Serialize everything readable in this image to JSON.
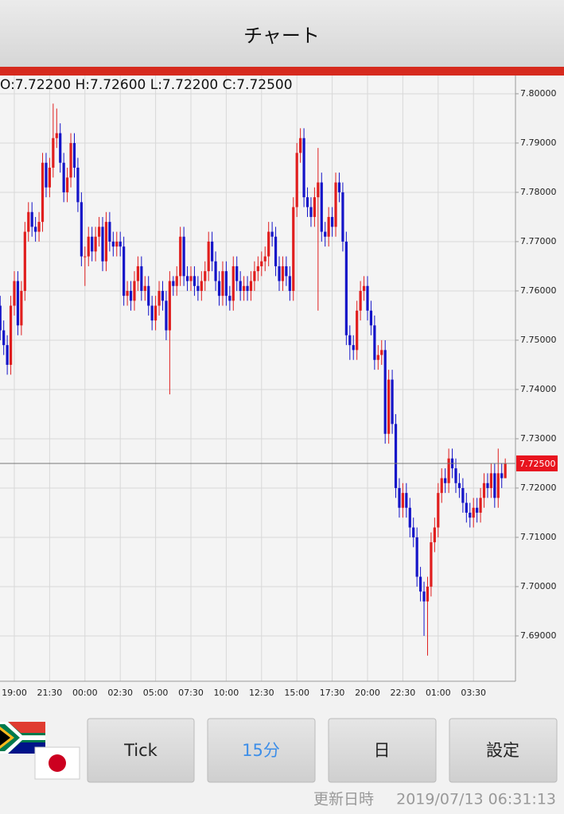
{
  "header": {
    "title": "チャート"
  },
  "buttons": [
    "Tick",
    "15分",
    "日",
    "設定"
  ],
  "footer": {
    "label": "更新日時",
    "timestamp": "2019/07/13 06:31:13"
  },
  "chart_data": {
    "type": "candlestick",
    "info": "O:7.72200 H:7.72600 L:7.72200 C:7.72500",
    "up_color": "#e01e1e",
    "down_color": "#1414c8",
    "categories": [
      null,
      null,
      null,
      null,
      "19:00",
      null,
      null,
      null,
      null,
      null,
      null,
      null,
      null,
      null,
      "21:30",
      null,
      null,
      null,
      null,
      null,
      null,
      null,
      null,
      null,
      "00:00",
      null,
      null,
      null,
      null,
      null,
      null,
      null,
      null,
      null,
      "02:30",
      null,
      null,
      null,
      null,
      null,
      null,
      null,
      null,
      null,
      "05:00",
      null,
      null,
      null,
      null,
      null,
      null,
      null,
      null,
      null,
      "07:30",
      null,
      null,
      null,
      null,
      null,
      null,
      null,
      null,
      null,
      "10:00",
      null,
      null,
      null,
      null,
      null,
      null,
      null,
      null,
      null,
      "12:30",
      null,
      null,
      null,
      null,
      null,
      null,
      null,
      null,
      null,
      "15:00",
      null,
      null,
      null,
      null,
      null,
      null,
      null,
      null,
      null,
      "17:30",
      null,
      null,
      null,
      null,
      null,
      null,
      null,
      null,
      null,
      "20:00",
      null,
      null,
      null,
      null,
      null,
      null,
      null,
      null,
      null,
      "22:30",
      null,
      null,
      null,
      null,
      null,
      null,
      null,
      null,
      null,
      "01:00",
      null,
      null,
      null,
      null,
      null,
      null,
      null,
      null,
      null,
      "03:30",
      null,
      null,
      null,
      null,
      null,
      null,
      null,
      null,
      null
    ],
    "open": [
      7.757,
      7.752,
      7.749,
      7.745,
      7.757,
      7.762,
      7.753,
      7.76,
      7.772,
      7.776,
      7.773,
      7.772,
      7.774,
      7.786,
      7.781,
      7.785,
      7.791,
      7.792,
      7.786,
      7.78,
      7.783,
      7.79,
      7.785,
      7.778,
      7.767,
      7.767,
      7.771,
      7.768,
      7.771,
      7.773,
      7.766,
      7.774,
      7.77,
      7.769,
      7.77,
      7.769,
      7.759,
      7.76,
      7.758,
      7.762,
      7.765,
      7.76,
      7.761,
      7.757,
      7.754,
      7.757,
      7.76,
      7.758,
      7.752,
      7.762,
      7.761,
      7.763,
      7.771,
      7.763,
      7.762,
      7.763,
      7.761,
      7.76,
      7.762,
      7.764,
      7.77,
      7.766,
      7.762,
      7.759,
      7.764,
      7.759,
      7.758,
      7.765,
      7.762,
      7.76,
      7.761,
      7.76,
      7.762,
      7.764,
      7.765,
      7.766,
      7.767,
      7.772,
      7.771,
      7.765,
      7.762,
      7.765,
      7.763,
      7.76,
      7.777,
      7.788,
      7.791,
      7.779,
      7.777,
      7.775,
      7.779,
      7.782,
      7.772,
      7.771,
      7.775,
      7.773,
      7.782,
      7.78,
      7.77,
      7.751,
      7.749,
      7.748,
      7.756,
      7.76,
      7.761,
      7.756,
      7.753,
      7.746,
      7.747,
      7.748,
      7.731,
      7.742,
      7.733,
      7.72,
      7.716,
      7.719,
      7.716,
      7.712,
      7.71,
      7.702,
      7.699,
      7.697,
      7.7,
      7.709,
      7.712,
      7.719,
      7.722,
      7.721,
      7.726,
      7.724,
      7.721,
      7.72,
      7.717,
      7.715,
      7.714,
      7.716,
      7.715,
      7.718,
      7.721,
      7.72,
      7.723,
      7.718,
      7.723,
      7.722
    ],
    "high": [
      7.759,
      7.754,
      7.751,
      7.759,
      7.764,
      7.764,
      7.762,
      7.774,
      7.778,
      7.778,
      7.775,
      7.776,
      7.788,
      7.788,
      7.787,
      7.798,
      7.797,
      7.794,
      7.788,
      7.785,
      7.792,
      7.792,
      7.787,
      7.78,
      7.769,
      7.773,
      7.773,
      7.773,
      7.775,
      7.775,
      7.776,
      7.776,
      7.772,
      7.772,
      7.772,
      7.771,
      7.762,
      7.762,
      7.764,
      7.767,
      7.767,
      7.763,
      7.763,
      7.759,
      7.759,
      7.762,
      7.762,
      7.76,
      7.764,
      7.763,
      7.765,
      7.773,
      7.773,
      7.765,
      7.765,
      7.765,
      7.763,
      7.764,
      7.766,
      7.772,
      7.772,
      7.768,
      7.764,
      7.766,
      7.766,
      7.761,
      7.767,
      7.767,
      7.764,
      7.763,
      7.763,
      7.764,
      7.766,
      7.767,
      7.768,
      7.769,
      7.774,
      7.774,
      7.773,
      7.767,
      7.767,
      7.767,
      7.765,
      7.779,
      7.79,
      7.793,
      7.793,
      7.781,
      7.779,
      7.781,
      7.789,
      7.784,
      7.774,
      7.777,
      7.777,
      7.784,
      7.784,
      7.782,
      7.772,
      7.753,
      7.751,
      7.758,
      7.762,
      7.763,
      7.763,
      7.758,
      7.755,
      7.749,
      7.75,
      7.75,
      7.744,
      7.744,
      7.735,
      7.722,
      7.721,
      7.721,
      7.718,
      7.714,
      7.712,
      7.704,
      7.701,
      7.702,
      7.711,
      7.714,
      7.721,
      7.724,
      7.724,
      7.728,
      7.728,
      7.726,
      7.723,
      7.722,
      7.719,
      7.717,
      7.718,
      7.718,
      7.72,
      7.723,
      7.723,
      7.725,
      7.725,
      7.728,
      7.725,
      7.726
    ],
    "low": [
      7.75,
      7.747,
      7.743,
      7.743,
      7.755,
      7.751,
      7.751,
      7.758,
      7.77,
      7.771,
      7.77,
      7.77,
      7.772,
      7.779,
      7.779,
      7.783,
      7.789,
      7.784,
      7.778,
      7.778,
      7.781,
      7.783,
      7.776,
      7.765,
      7.761,
      7.765,
      7.766,
      7.766,
      7.769,
      7.764,
      7.764,
      7.768,
      7.767,
      7.767,
      7.767,
      7.757,
      7.757,
      7.756,
      7.756,
      7.76,
      7.758,
      7.758,
      7.755,
      7.752,
      7.752,
      7.755,
      7.756,
      7.75,
      7.739,
      7.759,
      7.759,
      7.761,
      7.761,
      7.76,
      7.76,
      7.759,
      7.758,
      7.758,
      7.76,
      7.762,
      7.764,
      7.76,
      7.757,
      7.757,
      7.757,
      7.756,
      7.756,
      7.76,
      7.758,
      7.758,
      7.758,
      7.758,
      7.76,
      7.762,
      7.763,
      7.764,
      7.765,
      7.769,
      7.763,
      7.76,
      7.76,
      7.761,
      7.758,
      7.758,
      7.775,
      7.786,
      7.777,
      7.775,
      7.773,
      7.773,
      7.756,
      7.77,
      7.769,
      7.769,
      7.771,
      7.771,
      7.778,
      7.768,
      7.749,
      7.746,
      7.746,
      7.746,
      7.754,
      7.758,
      7.754,
      7.751,
      7.744,
      7.744,
      7.745,
      7.729,
      7.729,
      7.731,
      7.718,
      7.714,
      7.714,
      7.714,
      7.71,
      7.708,
      7.7,
      7.697,
      7.69,
      7.686,
      7.698,
      7.707,
      7.71,
      7.717,
      7.719,
      7.719,
      7.722,
      7.719,
      7.718,
      7.715,
      7.713,
      7.712,
      7.712,
      7.713,
      7.713,
      7.716,
      7.718,
      7.718,
      7.716,
      7.716,
      7.72,
      7.722
    ],
    "close": [
      7.752,
      7.749,
      7.745,
      7.757,
      7.762,
      7.753,
      7.76,
      7.772,
      7.776,
      7.773,
      7.772,
      7.774,
      7.786,
      7.781,
      7.785,
      7.791,
      7.792,
      7.786,
      7.78,
      7.783,
      7.79,
      7.785,
      7.778,
      7.767,
      7.767,
      7.771,
      7.768,
      7.771,
      7.773,
      7.766,
      7.774,
      7.77,
      7.769,
      7.77,
      7.769,
      7.759,
      7.76,
      7.758,
      7.762,
      7.765,
      7.76,
      7.761,
      7.757,
      7.754,
      7.757,
      7.76,
      7.758,
      7.752,
      7.762,
      7.761,
      7.763,
      7.771,
      7.763,
      7.762,
      7.763,
      7.761,
      7.76,
      7.762,
      7.764,
      7.77,
      7.766,
      7.762,
      7.759,
      7.764,
      7.759,
      7.758,
      7.765,
      7.762,
      7.76,
      7.761,
      7.76,
      7.762,
      7.764,
      7.765,
      7.766,
      7.767,
      7.772,
      7.771,
      7.765,
      7.762,
      7.765,
      7.763,
      7.76,
      7.777,
      7.788,
      7.791,
      7.779,
      7.777,
      7.775,
      7.779,
      7.782,
      7.772,
      7.771,
      7.775,
      7.773,
      7.782,
      7.78,
      7.77,
      7.751,
      7.749,
      7.748,
      7.756,
      7.76,
      7.761,
      7.756,
      7.753,
      7.746,
      7.747,
      7.748,
      7.731,
      7.742,
      7.733,
      7.72,
      7.716,
      7.719,
      7.716,
      7.712,
      7.71,
      7.702,
      7.699,
      7.697,
      7.7,
      7.709,
      7.712,
      7.719,
      7.722,
      7.721,
      7.726,
      7.724,
      7.721,
      7.72,
      7.717,
      7.715,
      7.714,
      7.716,
      7.715,
      7.718,
      7.721,
      7.72,
      7.723,
      7.718,
      7.723,
      7.722,
      7.725
    ],
    "current_price": {
      "value": 7.725,
      "label": "7.72500"
    },
    "ylim": [
      7.6808,
      7.8037
    ],
    "yticks": [
      {
        "value": 7.8,
        "label": "7.80000"
      },
      {
        "value": 7.79,
        "label": "7.79000"
      },
      {
        "value": 7.78,
        "label": "7.78000"
      },
      {
        "value": 7.77,
        "label": "7.77000"
      },
      {
        "value": 7.76,
        "label": "7.76000"
      },
      {
        "value": 7.75,
        "label": "7.75000"
      },
      {
        "value": 7.74,
        "label": "7.74000"
      },
      {
        "value": 7.73,
        "label": "7.73000"
      },
      {
        "value": 7.72,
        "label": "7.72000"
      },
      {
        "value": 7.71,
        "label": "7.71000"
      },
      {
        "value": 7.7,
        "label": "7.70000"
      },
      {
        "value": 7.69,
        "label": "7.69000"
      }
    ],
    "grid": true
  }
}
